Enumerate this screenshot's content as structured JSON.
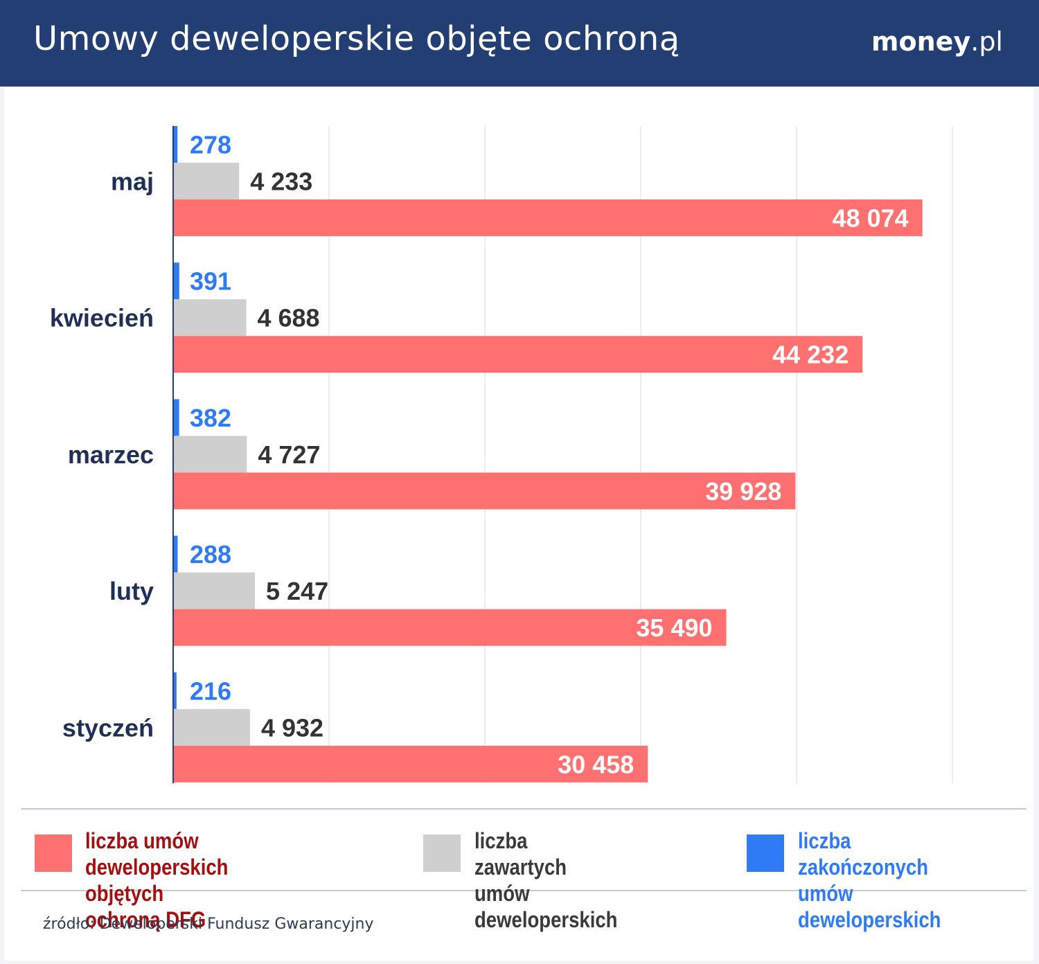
{
  "header": {
    "title": "Umowy deweloperskie objęte ochroną",
    "brand_bold": "money",
    "brand_light": ".pl"
  },
  "colors": {
    "header_bg": "#223e72",
    "red": "#ff7070",
    "gray": "#cfcfcf",
    "blue": "#2f7bf5",
    "label_dark": "#1f2f56",
    "legend_red": "#a30f0f",
    "legend_gray": "#3a3a3a"
  },
  "chart_data": {
    "type": "bar",
    "orientation": "horizontal",
    "categories": [
      "maj",
      "kwiecień",
      "marzec",
      "luty",
      "styczeń"
    ],
    "series": [
      {
        "name": "liczba zakończonych umów deweloperskich",
        "color": "#2f7bf5",
        "values": [
          278,
          391,
          382,
          288,
          216
        ],
        "labels": [
          "278",
          "391",
          "382",
          "288",
          "216"
        ]
      },
      {
        "name": "liczba zawartych umów deweloperskich",
        "color": "#cfcfcf",
        "values": [
          4233,
          4688,
          4727,
          5247,
          4932
        ],
        "labels": [
          "4 233",
          "4 688",
          "4 727",
          "5 247",
          "4 932"
        ]
      },
      {
        "name": "liczba umów deweloperskich objętych ochroną DFG",
        "color": "#ff7070",
        "values": [
          48074,
          44232,
          39928,
          35490,
          30458
        ],
        "labels": [
          "48 074",
          "44 232",
          "39 928",
          "35 490",
          "30 458"
        ]
      }
    ],
    "xlim": [
      0,
      50000
    ],
    "grid": true
  },
  "legend": [
    {
      "text": "liczba umów deweloperskich\nobjętych ochroną DFG",
      "color": "#ff7070",
      "text_color": "#a30f0f"
    },
    {
      "text": "liczba zawartych\numów deweloperskich",
      "color": "#cfcfcf",
      "text_color": "#3a3a3a"
    },
    {
      "text": "liczba zakończonych\numów deweloperskich",
      "color": "#2f7bf5",
      "text_color": "#2f7bf5"
    }
  ],
  "source": "źródło: Deweloperski Fundusz Gwarancyjny"
}
